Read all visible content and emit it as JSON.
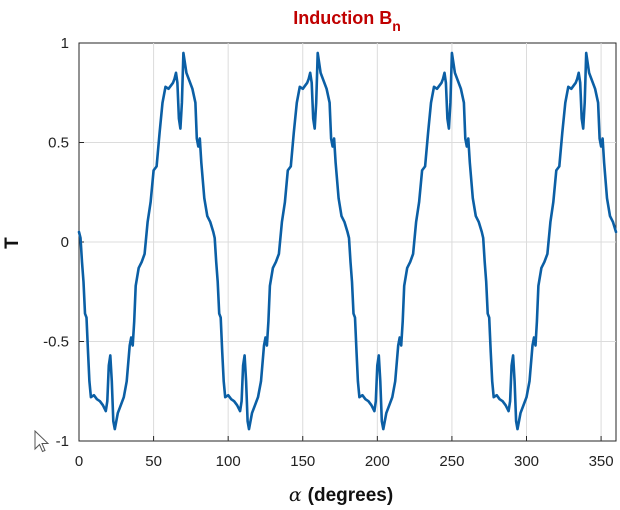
{
  "chart_data": {
    "type": "line",
    "title": "Induction B",
    "title_subscript": "n",
    "xlabel_symbol": "α",
    "xlabel": "(degrees)",
    "ylabel": "T",
    "xlim": [
      0,
      360
    ],
    "ylim": [
      -1,
      1
    ],
    "xticks": [
      0,
      50,
      100,
      150,
      200,
      250,
      300,
      350
    ],
    "yticks": [
      -1,
      -0.5,
      0,
      0.5,
      1
    ],
    "ytick_labels": [
      "-1",
      "-0.5",
      "0",
      "0.5",
      "1"
    ],
    "grid": true,
    "line_color": "#0b5fa5",
    "title_color": "#c00000",
    "period_degrees": 90,
    "series": [
      {
        "x": [
          0,
          1,
          2,
          3,
          4,
          5,
          6,
          7,
          8,
          10,
          12,
          14,
          16,
          18,
          19,
          20,
          21,
          22,
          23,
          24,
          25,
          26,
          28,
          30,
          32,
          34,
          35,
          36,
          37,
          38,
          40,
          42,
          44,
          46,
          48,
          50,
          52,
          54,
          56,
          58,
          60,
          62,
          63,
          64,
          65,
          66,
          67,
          68,
          69,
          70,
          72,
          74,
          76,
          78,
          79,
          80,
          81,
          82,
          84,
          86,
          88,
          90,
          91,
          92,
          93,
          94,
          95,
          96,
          97,
          98,
          100,
          102,
          104,
          106,
          108,
          109,
          110,
          111,
          112,
          113,
          114,
          115,
          116,
          118,
          120,
          122,
          124,
          125,
          126,
          127,
          128,
          130,
          132,
          134,
          136,
          138,
          140,
          142,
          144,
          146,
          148,
          150,
          152,
          153,
          154,
          155,
          156,
          157,
          158,
          159,
          160,
          162,
          164,
          166,
          168,
          169,
          170,
          171,
          172,
          174,
          176,
          178,
          180,
          181,
          182,
          183,
          184,
          185,
          186,
          187,
          188,
          190,
          192,
          194,
          196,
          198,
          199,
          200,
          201,
          202,
          203,
          204,
          205,
          206,
          208,
          210,
          212,
          214,
          215,
          216,
          217,
          218,
          220,
          222,
          224,
          226,
          228,
          230,
          232,
          234,
          236,
          238,
          240,
          242,
          243,
          244,
          245,
          246,
          247,
          248,
          249,
          250,
          252,
          254,
          256,
          258,
          259,
          260,
          261,
          262,
          264,
          266,
          268,
          270,
          271,
          272,
          273,
          274,
          275,
          276,
          277,
          278,
          280,
          282,
          284,
          286,
          288,
          289,
          290,
          291,
          292,
          293,
          294,
          295,
          296,
          298,
          300,
          302,
          304,
          305,
          306,
          307,
          308,
          310,
          312,
          314,
          316,
          318,
          320,
          322,
          324,
          326,
          328,
          330,
          332,
          333,
          334,
          335,
          336,
          337,
          338,
          339,
          340,
          342,
          344,
          346,
          348,
          349,
          350,
          351,
          352,
          354,
          356,
          358,
          360
        ],
        "y": [
          0.05,
          0.02,
          -0.1,
          -0.2,
          -0.36,
          -0.38,
          -0.55,
          -0.7,
          -0.78,
          -0.77,
          -0.79,
          -0.8,
          -0.82,
          -0.85,
          -0.8,
          -0.62,
          -0.57,
          -0.7,
          -0.9,
          -0.94,
          -0.9,
          -0.86,
          -0.82,
          -0.78,
          -0.7,
          -0.52,
          -0.48,
          -0.52,
          -0.4,
          -0.22,
          -0.13,
          -0.1,
          -0.06,
          0.1,
          0.2,
          0.36,
          0.38,
          0.55,
          0.7,
          0.78,
          0.77,
          0.79,
          0.8,
          0.82,
          0.85,
          0.8,
          0.62,
          0.57,
          0.7,
          0.95,
          0.85,
          0.81,
          0.77,
          0.7,
          0.52,
          0.48,
          0.52,
          0.4,
          0.22,
          0.13,
          0.1,
          0.05,
          0.02,
          -0.1,
          -0.2,
          -0.36,
          -0.38,
          -0.55,
          -0.7,
          -0.78,
          -0.77,
          -0.79,
          -0.8,
          -0.82,
          -0.85,
          -0.8,
          -0.62,
          -0.57,
          -0.7,
          -0.9,
          -0.94,
          -0.9,
          -0.86,
          -0.82,
          -0.78,
          -0.7,
          -0.52,
          -0.48,
          -0.52,
          -0.4,
          -0.22,
          -0.13,
          -0.1,
          -0.06,
          0.1,
          0.2,
          0.36,
          0.38,
          0.55,
          0.7,
          0.78,
          0.77,
          0.79,
          0.8,
          0.82,
          0.85,
          0.8,
          0.62,
          0.57,
          0.7,
          0.95,
          0.85,
          0.81,
          0.77,
          0.7,
          0.52,
          0.48,
          0.52,
          0.4,
          0.22,
          0.13,
          0.1,
          0.05,
          0.02,
          -0.1,
          -0.2,
          -0.36,
          -0.38,
          -0.55,
          -0.7,
          -0.78,
          -0.77,
          -0.79,
          -0.8,
          -0.82,
          -0.85,
          -0.8,
          -0.62,
          -0.57,
          -0.7,
          -0.9,
          -0.94,
          -0.9,
          -0.86,
          -0.82,
          -0.78,
          -0.7,
          -0.52,
          -0.48,
          -0.52,
          -0.4,
          -0.22,
          -0.13,
          -0.1,
          -0.06,
          0.1,
          0.2,
          0.36,
          0.38,
          0.55,
          0.7,
          0.78,
          0.77,
          0.79,
          0.8,
          0.82,
          0.85,
          0.8,
          0.62,
          0.57,
          0.7,
          0.95,
          0.85,
          0.81,
          0.77,
          0.7,
          0.52,
          0.48,
          0.52,
          0.4,
          0.22,
          0.13,
          0.1,
          0.05,
          0.02,
          -0.1,
          -0.2,
          -0.36,
          -0.38,
          -0.55,
          -0.7,
          -0.78,
          -0.77,
          -0.79,
          -0.8,
          -0.82,
          -0.85,
          -0.8,
          -0.62,
          -0.57,
          -0.7,
          -0.9,
          -0.94,
          -0.9,
          -0.86,
          -0.82,
          -0.78,
          -0.7,
          -0.52,
          -0.48,
          -0.52,
          -0.4,
          -0.22,
          -0.13,
          -0.1,
          -0.06,
          0.1,
          0.2,
          0.36,
          0.38,
          0.55,
          0.7,
          0.78,
          0.77,
          0.79,
          0.8,
          0.82,
          0.85,
          0.8,
          0.62,
          0.57,
          0.7,
          0.95,
          0.85,
          0.81,
          0.77,
          0.7,
          0.52,
          0.48,
          0.52,
          0.4,
          0.22,
          0.13,
          0.1,
          0.05
        ]
      }
    ]
  },
  "cursor_icon": "mouse-pointer-icon"
}
